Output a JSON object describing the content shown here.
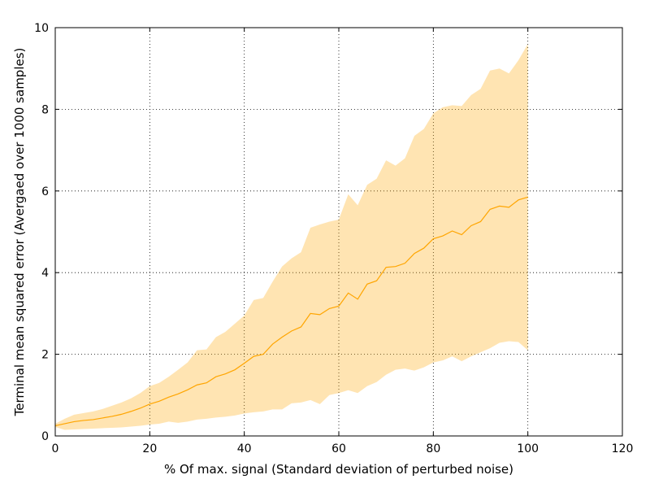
{
  "chart_data": {
    "type": "line",
    "title": "",
    "xlabel": "% Of max. signal (Standard deviation of perturbed noise)",
    "ylabel": "Terminal mean squared error (Avergaed over 1000 samples)",
    "xlim": [
      0,
      120
    ],
    "ylim": [
      0,
      10
    ],
    "xticks": [
      0,
      20,
      40,
      60,
      80,
      100,
      120
    ],
    "yticks": [
      0,
      2,
      4,
      6,
      8,
      10
    ],
    "grid": true,
    "grid_style": "dotted",
    "colors": {
      "line": "#ffa500",
      "band": "#ffa500",
      "band_opacity": 0.3
    },
    "series": [
      {
        "x": [
          0,
          2,
          4,
          6,
          8,
          10,
          12,
          14,
          16,
          18,
          20,
          22,
          24,
          26,
          28,
          30,
          32,
          34,
          36,
          38,
          40,
          42,
          44,
          46,
          48,
          50,
          52,
          54,
          56,
          58,
          60,
          62,
          64,
          66,
          68,
          70,
          72,
          74,
          76,
          78,
          80,
          82,
          84,
          86,
          88,
          90,
          92,
          94,
          96,
          98,
          100
        ],
        "mean": [
          0.25,
          0.3,
          0.35,
          0.38,
          0.4,
          0.44,
          0.48,
          0.53,
          0.6,
          0.68,
          0.78,
          0.85,
          0.95,
          1.03,
          1.13,
          1.25,
          1.3,
          1.45,
          1.52,
          1.62,
          1.78,
          1.95,
          2.0,
          2.25,
          2.42,
          2.57,
          2.67,
          3.0,
          2.97,
          3.12,
          3.18,
          3.5,
          3.35,
          3.72,
          3.8,
          4.13,
          4.15,
          4.23,
          4.47,
          4.6,
          4.83,
          4.9,
          5.02,
          4.93,
          5.15,
          5.25,
          5.55,
          5.63,
          5.6,
          5.78,
          5.85
        ],
        "upper": [
          0.3,
          0.42,
          0.52,
          0.56,
          0.6,
          0.66,
          0.74,
          0.82,
          0.92,
          1.05,
          1.22,
          1.3,
          1.45,
          1.62,
          1.8,
          2.1,
          2.12,
          2.42,
          2.55,
          2.75,
          2.95,
          3.33,
          3.38,
          3.78,
          4.15,
          4.35,
          4.5,
          5.1,
          5.18,
          5.25,
          5.3,
          5.92,
          5.65,
          6.15,
          6.3,
          6.75,
          6.62,
          6.8,
          7.35,
          7.52,
          7.9,
          8.05,
          8.1,
          8.08,
          8.35,
          8.5,
          8.95,
          9.0,
          8.88,
          9.2,
          9.6
        ],
        "lower": [
          0.22,
          0.15,
          0.16,
          0.17,
          0.18,
          0.19,
          0.2,
          0.21,
          0.23,
          0.25,
          0.28,
          0.3,
          0.35,
          0.32,
          0.35,
          0.4,
          0.42,
          0.45,
          0.47,
          0.5,
          0.55,
          0.58,
          0.6,
          0.65,
          0.65,
          0.8,
          0.82,
          0.88,
          0.78,
          1.0,
          1.05,
          1.12,
          1.05,
          1.22,
          1.32,
          1.5,
          1.62,
          1.65,
          1.6,
          1.68,
          1.8,
          1.85,
          1.95,
          1.83,
          1.95,
          2.05,
          2.15,
          2.28,
          2.32,
          2.3,
          2.1
        ]
      }
    ]
  }
}
